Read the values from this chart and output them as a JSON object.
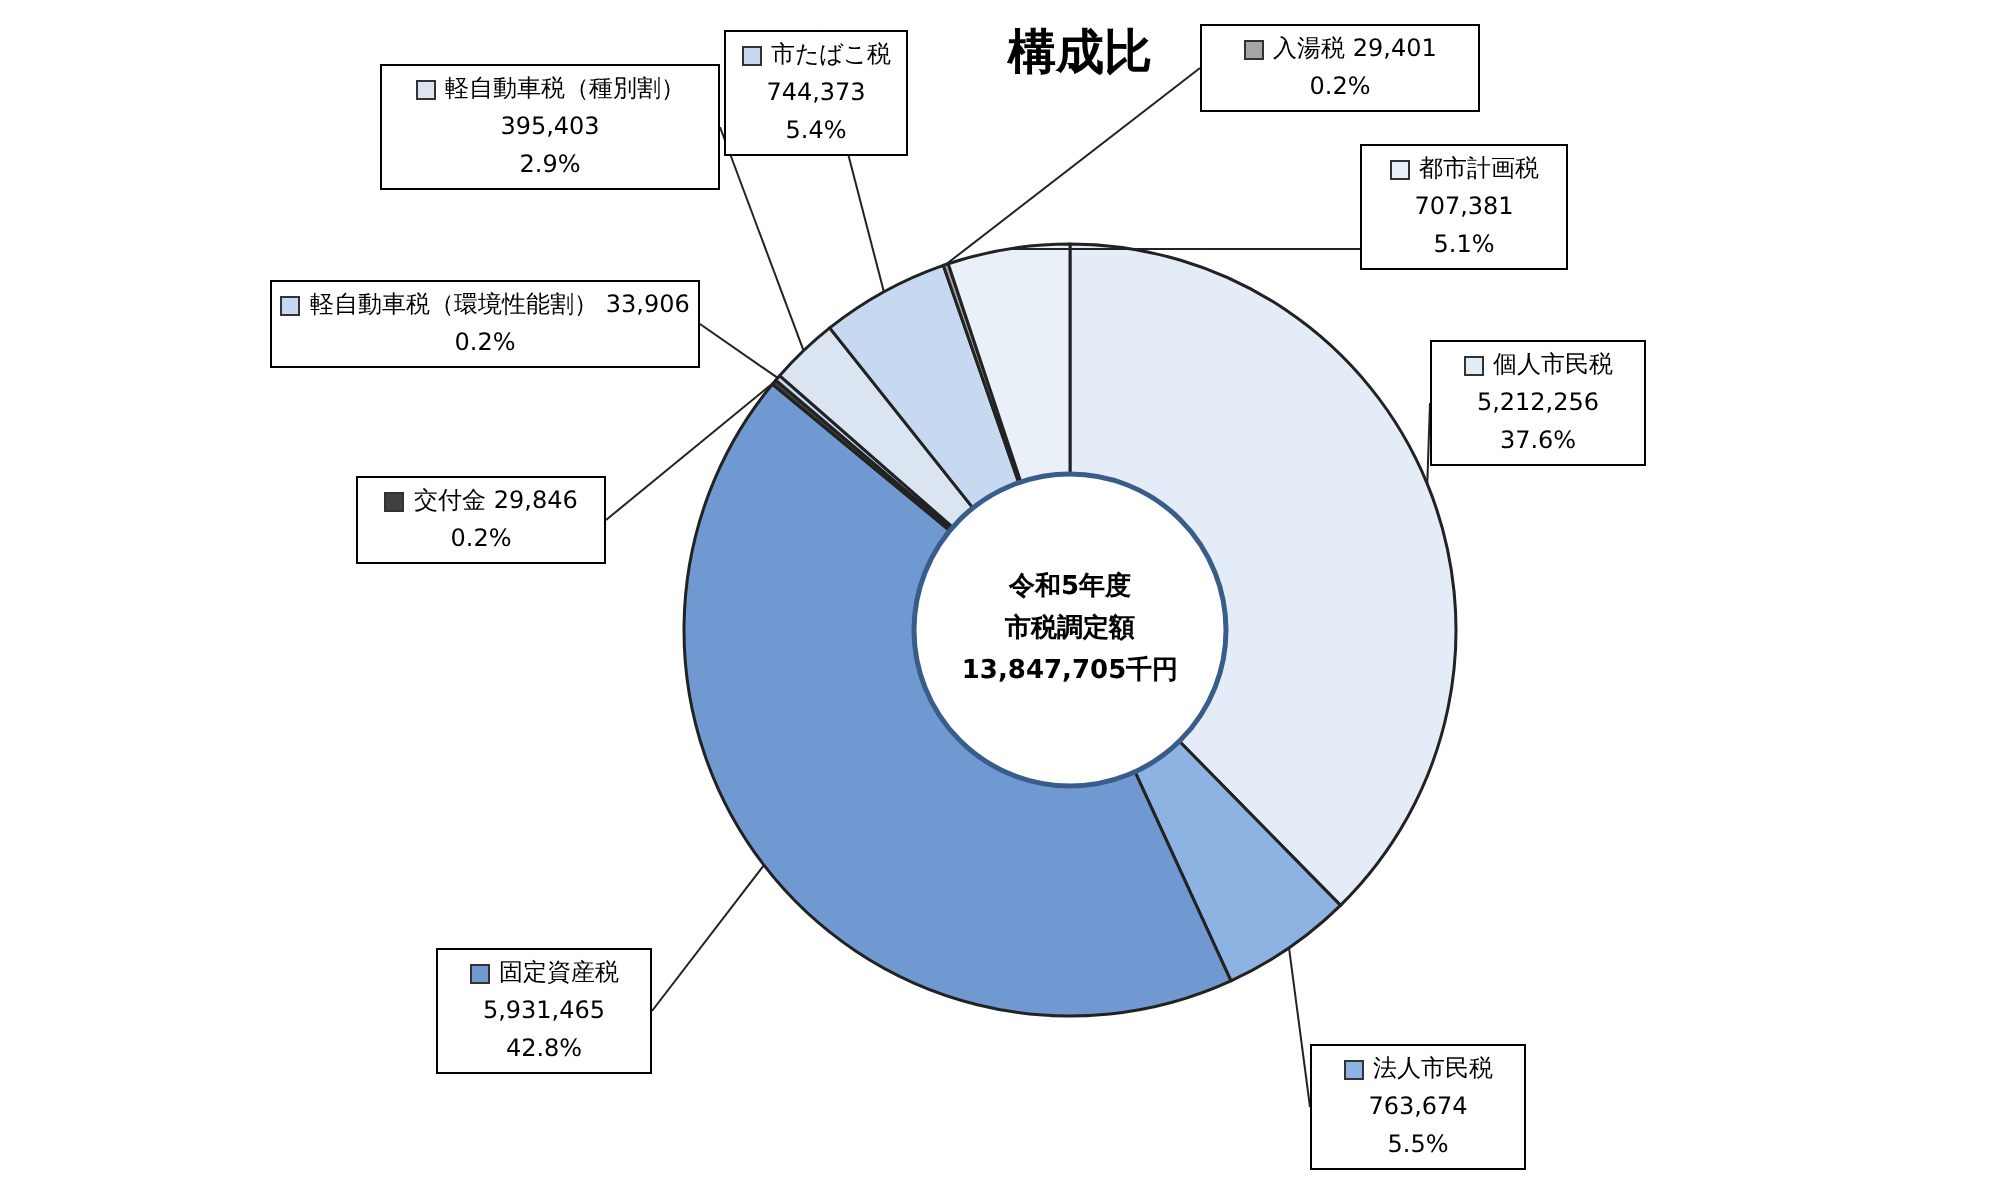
{
  "chart_data": {
    "type": "donut",
    "title": "構成比",
    "categories": [
      "個人市民税",
      "法人市民税",
      "固定資産税",
      "交付金",
      "軽自動車税（環境性能割）",
      "軽自動車税（種別割）",
      "市たばこ税",
      "入湯税",
      "都市計画税"
    ],
    "values": [
      5212256,
      763674,
      5931465,
      29846,
      33906,
      395403,
      744373,
      29401,
      707381
    ],
    "value_labels": [
      "5,212,256\n37.6%",
      "763,674\n5.5%",
      "5,931,465\n42.8%",
      "29,846\n0.2%",
      "33,906\n0.2%",
      "395,403\n2.9%",
      "744,373\n5.4%",
      "29,401\n0.2%",
      "707,381\n5.1%"
    ],
    "colors": [
      "#e4ecf7",
      "#8db3e2",
      "#6f99d0",
      "#404040",
      "#c6d9f1",
      "#dbe5f1",
      "#c6d9f1",
      "#a6a6a6",
      "#eaf0f8"
    ],
    "legend": "top left",
    "annotations": [
      "令和5年度",
      "市税調定額",
      "13,847,705千円"
    ]
  }
}
